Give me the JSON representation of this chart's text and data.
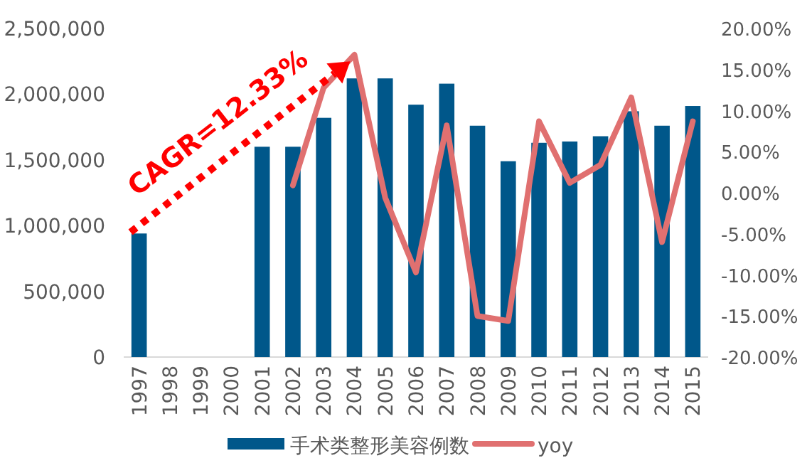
{
  "chart_data": {
    "type": "bar",
    "categories": [
      "1997",
      "1998",
      "1999",
      "2000",
      "2001",
      "2002",
      "2003",
      "2004",
      "2005",
      "2006",
      "2007",
      "2008",
      "2009",
      "2010",
      "2011",
      "2012",
      "2013",
      "2014",
      "2015"
    ],
    "series": [
      {
        "name": "手术类整形美容例数",
        "color": "#00578a",
        "values": [
          940000,
          null,
          null,
          null,
          1600000,
          1600000,
          1820000,
          2120000,
          2120000,
          1920000,
          2080000,
          1760000,
          1490000,
          1630000,
          1640000,
          1680000,
          1870000,
          1760000,
          1910000
        ]
      },
      {
        "name": "yoy",
        "type": "line",
        "axis": "y2",
        "color": "#e07070",
        "values": [
          null,
          null,
          null,
          null,
          null,
          0.9,
          12.8,
          16.8,
          -0.6,
          -9.7,
          8.2,
          -15.0,
          -15.6,
          8.7,
          1.2,
          3.4,
          11.6,
          -6.0,
          8.7
        ]
      }
    ],
    "ylim": [
      0,
      2500000
    ],
    "yticks": [
      {
        "value": 0,
        "label": "0"
      },
      {
        "value": 500000,
        "label": "500,000"
      },
      {
        "value": 1000000,
        "label": "1,000,000"
      },
      {
        "value": 1500000,
        "label": "1,500,000"
      },
      {
        "value": 2000000,
        "label": "2,000,000"
      },
      {
        "value": 2500000,
        "label": "2,500,000"
      }
    ],
    "y2lim": [
      -20,
      20
    ],
    "y2ticks": [
      {
        "value": -20,
        "label": "-20.00%"
      },
      {
        "value": -15,
        "label": "-15.00%"
      },
      {
        "value": -10,
        "label": "-10.00%"
      },
      {
        "value": -5,
        "label": "-5.00%"
      },
      {
        "value": 0,
        "label": "0.00%"
      },
      {
        "value": 5,
        "label": "5.00%"
      },
      {
        "value": 10,
        "label": "10.00%"
      },
      {
        "value": 15,
        "label": "15.00%"
      },
      {
        "value": 20,
        "label": "20.00%"
      }
    ],
    "annotations": [
      "CAGR=12.33%"
    ],
    "grid": false,
    "legend": "bottom"
  }
}
